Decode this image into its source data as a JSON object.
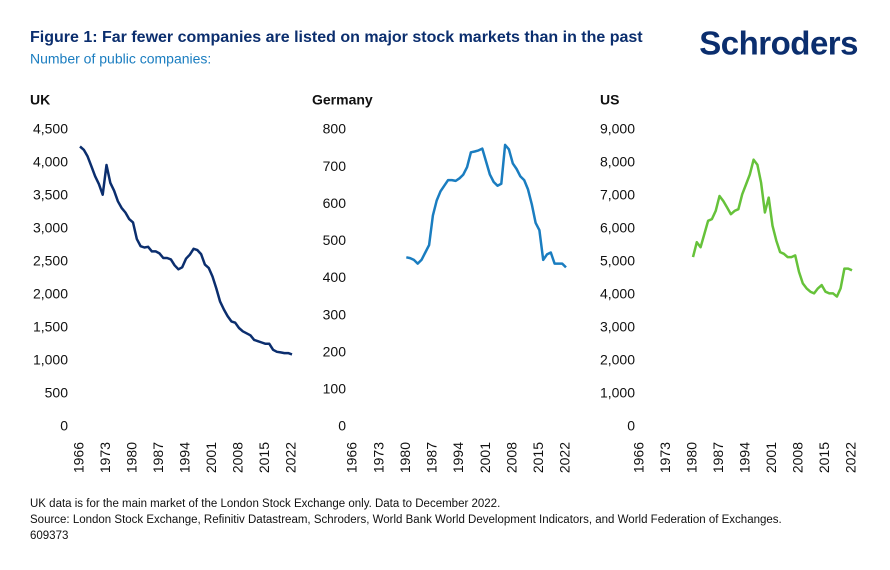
{
  "title": "Figure 1: Far fewer companies are listed on major stock markets than in the past",
  "subtitle": "Number of public companies:",
  "logo": "Schroders",
  "notes": [
    "UK data is for the main market of the London Stock Exchange only. Data to December 2022.",
    "Source: London Stock Exchange, Refinitiv Datastream, Schroders, World Bank World Development Indicators, and World Federation of Exchanges.",
    "609373"
  ],
  "chart_data": [
    {
      "type": "line",
      "title": "UK",
      "color": "#0b2e6e",
      "x": [
        1966,
        1967,
        1968,
        1969,
        1970,
        1971,
        1972,
        1973,
        1974,
        1975,
        1976,
        1977,
        1978,
        1979,
        1980,
        1981,
        1982,
        1983,
        1984,
        1985,
        1986,
        1987,
        1988,
        1989,
        1990,
        1991,
        1992,
        1993,
        1994,
        1995,
        1996,
        1997,
        1998,
        1999,
        2000,
        2001,
        2002,
        2003,
        2004,
        2005,
        2006,
        2007,
        2008,
        2009,
        2010,
        2011,
        2012,
        2013,
        2014,
        2015,
        2016,
        2017,
        2018,
        2019,
        2020,
        2021,
        2022
      ],
      "values": [
        4250,
        4200,
        4100,
        3950,
        3800,
        3680,
        3520,
        3970,
        3700,
        3580,
        3420,
        3320,
        3250,
        3150,
        3100,
        2850,
        2740,
        2720,
        2730,
        2660,
        2660,
        2630,
        2560,
        2560,
        2540,
        2450,
        2390,
        2420,
        2550,
        2610,
        2700,
        2680,
        2620,
        2460,
        2410,
        2280,
        2100,
        1900,
        1780,
        1680,
        1600,
        1580,
        1500,
        1450,
        1420,
        1390,
        1320,
        1300,
        1280,
        1260,
        1260,
        1170,
        1140,
        1130,
        1120,
        1120,
        1100
      ],
      "xlim": [
        1966,
        2022
      ],
      "xticks": [
        1966,
        1973,
        1980,
        1987,
        1994,
        2001,
        2008,
        2015,
        2022
      ],
      "ylim": [
        0,
        4500
      ],
      "yticks": [
        0,
        500,
        {
          "value": 1000,
          "label": "1,000"
        },
        {
          "value": 1500,
          "label": "1,500"
        },
        {
          "value": 2000,
          "label": "2,000"
        },
        {
          "value": 2500,
          "label": "2,500"
        },
        {
          "value": 3000,
          "label": "3,000"
        },
        {
          "value": 3500,
          "label": "3,500"
        },
        {
          "value": 4000,
          "label": "4,000"
        },
        {
          "value": 4500,
          "label": "4,500"
        }
      ]
    },
    {
      "type": "line",
      "title": "Germany",
      "color": "#1a7dc0",
      "x": [
        1980,
        1981,
        1982,
        1983,
        1984,
        1985,
        1986,
        1987,
        1988,
        1989,
        1990,
        1991,
        1992,
        1993,
        1994,
        1995,
        1996,
        1997,
        1998,
        1999,
        2000,
        2001,
        2002,
        2003,
        2004,
        2005,
        2006,
        2007,
        2008,
        2009,
        2010,
        2011,
        2012,
        2013,
        2014,
        2015,
        2016,
        2017,
        2018,
        2019,
        2020,
        2021,
        2022
      ],
      "values": [
        457,
        455,
        450,
        440,
        450,
        470,
        490,
        570,
        610,
        635,
        650,
        665,
        665,
        663,
        670,
        680,
        700,
        740,
        742,
        745,
        750,
        715,
        680,
        660,
        650,
        655,
        760,
        748,
        710,
        695,
        675,
        665,
        640,
        600,
        550,
        530,
        450,
        465,
        470,
        440,
        440,
        440,
        430
      ],
      "xlim": [
        1966,
        2022
      ],
      "xticks": [
        1966,
        1973,
        1980,
        1987,
        1994,
        2001,
        2008,
        2015,
        2022
      ],
      "ylim": [
        0,
        800
      ],
      "yticks": [
        0,
        100,
        200,
        300,
        400,
        500,
        600,
        700,
        800
      ]
    },
    {
      "type": "line",
      "title": "US",
      "color": "#66c23a",
      "x": [
        1980,
        1981,
        1982,
        1983,
        1984,
        1985,
        1986,
        1987,
        1988,
        1989,
        1990,
        1991,
        1992,
        1993,
        1994,
        1995,
        1996,
        1997,
        1998,
        1999,
        2000,
        2001,
        2002,
        2003,
        2004,
        2005,
        2006,
        2007,
        2008,
        2009,
        2010,
        2011,
        2012,
        2013,
        2014,
        2015,
        2016,
        2017,
        2018,
        2019,
        2020,
        2021,
        2022
      ],
      "values": [
        5150,
        5600,
        5450,
        5850,
        6250,
        6300,
        6550,
        7000,
        6850,
        6650,
        6450,
        6550,
        6600,
        7050,
        7350,
        7650,
        8100,
        7950,
        7400,
        6500,
        6950,
        6100,
        5650,
        5300,
        5250,
        5150,
        5150,
        5200,
        4700,
        4350,
        4200,
        4100,
        4050,
        4200,
        4300,
        4100,
        4050,
        4050,
        3950,
        4200,
        4800,
        4800,
        4750
      ],
      "xlim": [
        1966,
        2022
      ],
      "xticks": [
        1966,
        1973,
        1980,
        1987,
        1994,
        2001,
        2008,
        2015,
        2022
      ],
      "ylim": [
        0,
        9000
      ],
      "yticks": [
        0,
        {
          "value": 1000,
          "label": "1,000"
        },
        {
          "value": 2000,
          "label": "2,000"
        },
        {
          "value": 3000,
          "label": "3,000"
        },
        {
          "value": 4000,
          "label": "4,000"
        },
        {
          "value": 5000,
          "label": "5,000"
        },
        {
          "value": 6000,
          "label": "6,000"
        },
        {
          "value": 7000,
          "label": "7,000"
        },
        {
          "value": 8000,
          "label": "8,000"
        },
        {
          "value": 9000,
          "label": "9,000"
        }
      ]
    }
  ]
}
